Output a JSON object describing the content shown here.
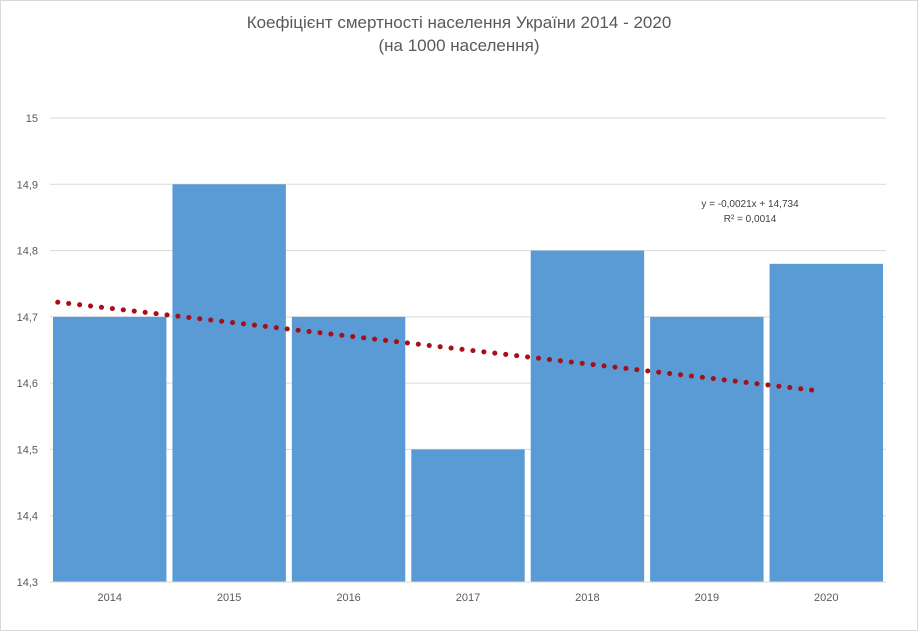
{
  "chart_data": {
    "type": "bar",
    "title": "Коефіцієнт смертності населення України 2014 - 2020",
    "subtitle": "(на 1000 населення)",
    "xlabel": "",
    "ylabel": "",
    "categories": [
      "2014",
      "2015",
      "2016",
      "2017",
      "2018",
      "2019",
      "2020"
    ],
    "values": [
      14.7,
      14.9,
      14.7,
      14.5,
      14.8,
      14.7,
      14.78
    ],
    "ylim": [
      14.3,
      15
    ],
    "yticks": [
      14.3,
      14.4,
      14.5,
      14.6,
      14.7,
      14.8,
      14.9,
      15
    ],
    "ytick_labels": [
      "14,3",
      "14,4",
      "14,5",
      "14,6",
      "14,7",
      "14,8",
      "14,9",
      "15"
    ],
    "grid": true,
    "bar_color": "#5b9bd5",
    "trendline": {
      "type": "linear",
      "slope": -0.0021,
      "intercept": 14.734,
      "color": "#a50f15",
      "equation": "y = -0,0021x + 14,734",
      "r_squared": "R² = 0,0014"
    }
  }
}
